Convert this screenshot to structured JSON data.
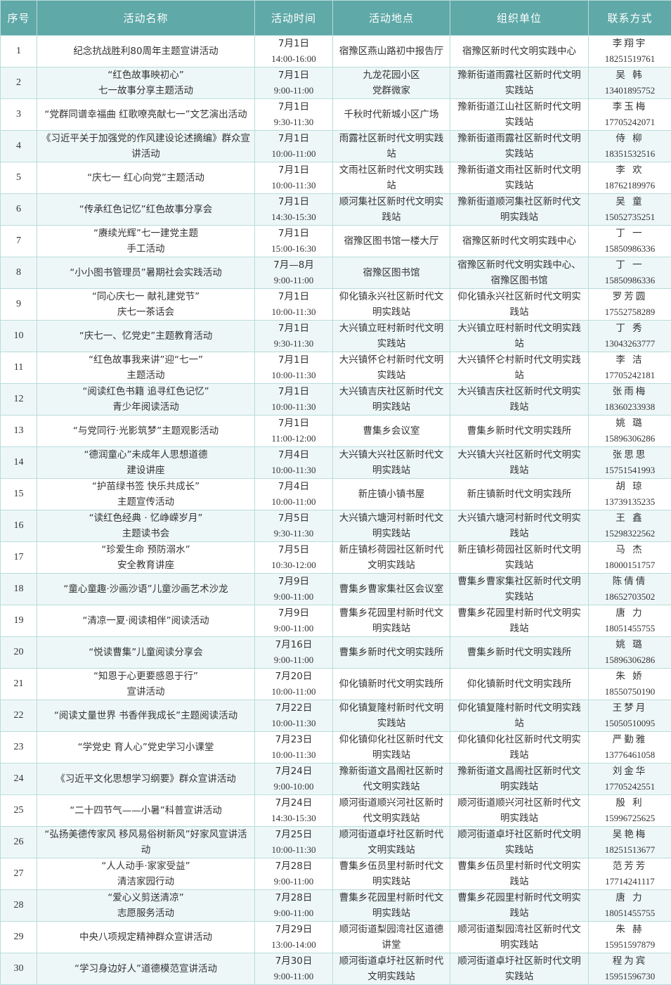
{
  "colors": {
    "header_bg": "#5fa9a8",
    "row_alt_bg": "#eef7f7",
    "border": "#b9dcdc"
  },
  "headers": [
    "序号",
    "活动名称",
    "活动时间",
    "活动地点",
    "组织单位",
    "联系方式"
  ],
  "rows": [
    {
      "no": "1",
      "name": "纪念抗战胜利80周年主题宣讲活动",
      "date": "7月1日",
      "time": "14:00-16:00",
      "place": "宿豫区燕山路初中报告厅",
      "org": "宿豫区新时代文明实践中心",
      "person": "李翔宇",
      "phone": "18251519761"
    },
    {
      "no": "2",
      "name": "“红色故事映初心”\n七一故事分享主题活动",
      "date": "7月1日",
      "time": "9:00-11:00",
      "place": "九龙花园小区\n党群微家",
      "org": "豫新街道雨露社区新时代文明实践站",
      "person": "吴 韩",
      "phone": "13401895752"
    },
    {
      "no": "3",
      "name": "“党群同谱幸福曲 红歌嘹亮献七一”文艺演出活动",
      "date": "7月1日",
      "time": "9:30-11:30",
      "place": "千秋时代新城小区广场",
      "org": "豫新街道江山社区新时代文明实践站",
      "person": "李玉梅",
      "phone": "17705242071"
    },
    {
      "no": "4",
      "name": "《习近平关于加强党的作风建设论述摘编》群众宣讲活动",
      "date": "7月1日",
      "time": "10:00-11:00",
      "place": "雨露社区新时代文明实践站",
      "org": "豫新街道雨露社区新时代文明实践站",
      "person": "侍 柳",
      "phone": "18351532516"
    },
    {
      "no": "5",
      "name": "“庆七一 红心向党”主题活动",
      "date": "7月1日",
      "time": "10:00-11:30",
      "place": "文雨社区新时代文明实践站",
      "org": "豫新街道文雨社区新时代文明实践站",
      "person": "李 欢",
      "phone": "18762189976"
    },
    {
      "no": "6",
      "name": "“传承红色记忆”红色故事分享会",
      "date": "7月1日",
      "time": "14:30-15:30",
      "place": "顺河集社区新时代文明实践站",
      "org": "豫新街道顺河集社区新时代文明实践站",
      "person": "吴 童",
      "phone": "15052735251"
    },
    {
      "no": "7",
      "name": "“赓续光辉”七一建党主题\n手工活动",
      "date": "7月1日",
      "time": "15:00-16:30",
      "place": "宿豫区图书馆一楼大厅",
      "org": "宿豫区新时代文明实践中心",
      "person": "丁 一",
      "phone": "15850986336"
    },
    {
      "no": "8",
      "name": "“小小图书管理员”暑期社会实践活动",
      "date": "7月—8月",
      "time": "9:00-11:00",
      "place": "宿豫区图书馆",
      "org": "宿豫区新时代文明实践中心、宿豫区图书馆",
      "person": "丁 一",
      "phone": "15850986336"
    },
    {
      "no": "9",
      "name": "“同心庆七一 献礼建党节”\n庆七一茶话会",
      "date": "7月1日",
      "time": "10:00-11:30",
      "place": "仰化镇永兴社区新时代文明实践站",
      "org": "仰化镇永兴社区新时代文明实践站",
      "person": "罗芳圆",
      "phone": "17552758289"
    },
    {
      "no": "10",
      "name": "“庆七一、忆党史”主题教育活动",
      "date": "7月1日",
      "time": "9:30-11:30",
      "place": "大兴镇立旺村新时代文明实践站",
      "org": "大兴镇立旺村新时代文明实践站",
      "person": "丁 秀",
      "phone": "13043263777"
    },
    {
      "no": "11",
      "name": "“红色故事我来讲”迎“七一”\n主题活动",
      "date": "7月1日",
      "time": "10:00-11:30",
      "place": "大兴镇怀仑村新时代文明实践站",
      "org": "大兴镇怀仑村新时代文明实践站",
      "person": "李 洁",
      "phone": "17705242181"
    },
    {
      "no": "12",
      "name": "“阅读红色书籍 追寻红色记忆”\n青少年阅读活动",
      "date": "7月1日",
      "time": "10:00-11:30",
      "place": "大兴镇吉庆社区新时代文明实践站",
      "org": "大兴镇吉庆社区新时代文明实践站",
      "person": "张雨梅",
      "phone": "18360233938"
    },
    {
      "no": "13",
      "name": "“与党同行·光影筑梦”主题观影活动",
      "date": "7月1日",
      "time": "11:00-12:00",
      "place": "曹集乡会议室",
      "org": "曹集乡新时代文明实践所",
      "person": "姚 璐",
      "phone": "15896306286"
    },
    {
      "no": "14",
      "name": "“德润童心”未成年人思想道德\n建设讲座",
      "date": "7月4日",
      "time": "10:00-11:30",
      "place": "大兴镇大兴社区新时代文明实践站",
      "org": "大兴镇大兴社区新时代文明实践站",
      "person": "张思思",
      "phone": "15751541993"
    },
    {
      "no": "15",
      "name": "“护苗绿书签 快乐共成长”\n主题宣传活动",
      "date": "7月4日",
      "time": "10:00-11:00",
      "place": "新庄镇小镇书屋",
      "org": "新庄镇新时代文明实践所",
      "person": "胡 琼",
      "phone": "13739135235"
    },
    {
      "no": "16",
      "name": "“读红色经典 · 忆峥嵘岁月”\n主题读书会",
      "date": "7月5日",
      "time": "9:30-11:30",
      "place": "大兴镇六塘河村新时代文明实践站",
      "org": "大兴镇六塘河村新时代文明实践站",
      "person": "王 鑫",
      "phone": "15298322562"
    },
    {
      "no": "17",
      "name": "“珍爱生命 预防溺水”\n安全教育讲座",
      "date": "7月5日",
      "time": "10:30-12:00",
      "place": "新庄镇杉荷园社区新时代文明实践站",
      "org": "新庄镇杉荷园社区新时代文明实践站",
      "person": "马 杰",
      "phone": "18000151757"
    },
    {
      "no": "18",
      "name": "“童心童趣·沙画沙语”儿童沙画艺术沙龙",
      "date": "7月9日",
      "time": "9:00-11:00",
      "place": "曹集乡曹家集社区会议室",
      "org": "曹集乡曹家集社区新时代文明实践站",
      "person": "陈倩倩",
      "phone": "18652703502"
    },
    {
      "no": "19",
      "name": "“清凉一夏·阅读相伴”阅读活动",
      "date": "7月9日",
      "time": "9:00-11:00",
      "place": "曹集乡花园里村新时代文明实践站",
      "org": "曹集乡花园里村新时代文明实践站",
      "person": "唐 力",
      "phone": "18051455755"
    },
    {
      "no": "20",
      "name": "“悦读曹集”儿童阅读分享会",
      "date": "7月16日",
      "time": "9:00-11:00",
      "place": "曹集乡新时代文明实践所",
      "org": "曹集乡新时代文明实践所",
      "person": "姚 璐",
      "phone": "15896306286"
    },
    {
      "no": "21",
      "name": "“知恩于心更要感恩于行”\n宣讲活动",
      "date": "7月20日",
      "time": "10:00-11:00",
      "place": "仰化镇新时代文明实践所",
      "org": "仰化镇新时代文明实践所",
      "person": "朱 娇",
      "phone": "18550750190"
    },
    {
      "no": "22",
      "name": "“阅读丈量世界 书香伴我成长”主题阅读活动",
      "date": "7月22日",
      "time": "10:00-11:30",
      "place": "仰化镇复隆村新时代文明实践站",
      "org": "仰化镇复隆村新时代文明实践站",
      "person": "王梦月",
      "phone": "15050510095"
    },
    {
      "no": "23",
      "name": "“学党史 育人心”党史学习小课堂",
      "date": "7月23日",
      "time": "10:00-11:30",
      "place": "仰化镇仰化社区新时代文明实践站",
      "org": "仰化镇仰化社区新时代文明实践站",
      "person": "严勤雅",
      "phone": "13776461058"
    },
    {
      "no": "24",
      "name": "《习近平文化思想学习纲要》群众宣讲活动",
      "date": "7月24日",
      "time": "9:00-10:00",
      "place": "豫新街道文昌阁社区新时代文明实践站",
      "org": "豫新街道文昌阁社区新时代文明实践站",
      "person": "刘金华",
      "phone": "17705242551"
    },
    {
      "no": "25",
      "name": "“二十四节气——小暑”科普宣讲活动",
      "date": "7月24日",
      "time": "14:30-15:30",
      "place": "顺河街道顺兴河社区新时代文明实践站",
      "org": "顺河街道顺兴河社区新时代文明实践站",
      "person": "殷 利",
      "phone": "15996725625"
    },
    {
      "no": "26",
      "name": "“弘扬美德传家风 移风易俗树新风”好家风宣讲活动",
      "date": "7月25日",
      "time": "10:00-11:30",
      "place": "顺河街道卓圩社区新时代文明实践站",
      "org": "顺河街道卓圩社区新时代文明实践站",
      "person": "吴艳梅",
      "phone": "18251513677"
    },
    {
      "no": "27",
      "name": "“人人动手·家家受益”\n清洁家园行动",
      "date": "7月28日",
      "time": "9:00-11:00",
      "place": "曹集乡伍员里村新时代文明实践站",
      "org": "曹集乡伍员里村新时代文明实践站",
      "person": "范芳芳",
      "phone": "17714241117"
    },
    {
      "no": "28",
      "name": "“爱心义剪送清凉”\n志愿服务活动",
      "date": "7月28日",
      "time": "9:00-11:00",
      "place": "曹集乡花园里村新时代文明实践站",
      "org": "曹集乡花园里村新时代文明实践站",
      "person": "唐 力",
      "phone": "18051455755"
    },
    {
      "no": "29",
      "name": "中央八项规定精神群众宣讲活动",
      "date": "7月29日",
      "time": "13:00-14:00",
      "place": "顺河街道梨园湾社区道德讲堂",
      "org": "顺河街道梨园湾社区新时代文明实践站",
      "person": "朱 赫",
      "phone": "15951597879"
    },
    {
      "no": "30",
      "name": "“学习身边好人”道德模范宣讲活动",
      "date": "7月30日",
      "time": "9:00-11:00",
      "place": "顺河街道卓圩社区新时代文明实践站",
      "org": "顺河街道卓圩社区新时代文明实践站",
      "person": "程为宾",
      "phone": "15951596730"
    }
  ]
}
